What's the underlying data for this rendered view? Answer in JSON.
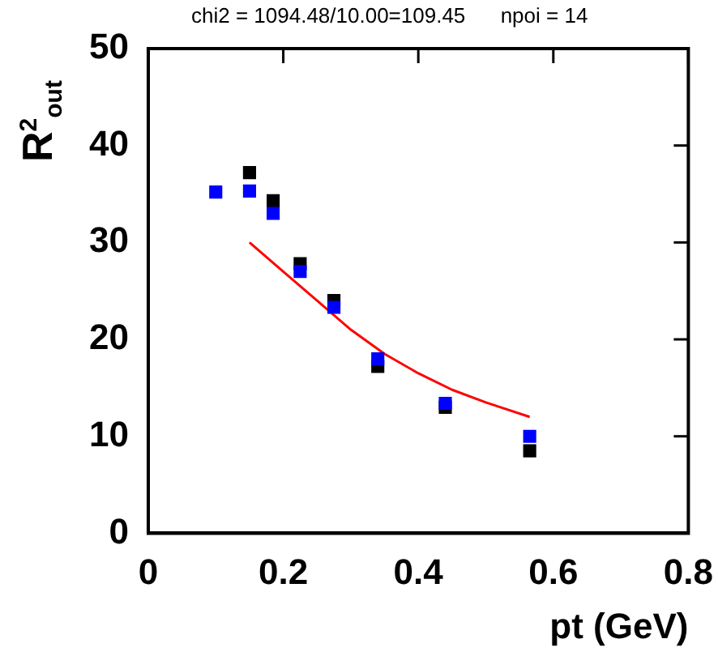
{
  "chart_data": {
    "type": "scatter",
    "ylabel": "R$^{2}$$_{out}$",
    "xlabel": "pt (GeV)",
    "annotations": [
      "chi2 = 1094.48/10.00=109.45",
      "npoi = 14"
    ],
    "xlim": [
      0,
      0.8
    ],
    "xticks": [
      0,
      0.2,
      0.4,
      0.6,
      0.8
    ],
    "ylim": [
      0,
      50
    ],
    "yticks": [
      0,
      10,
      20,
      30,
      40,
      50
    ],
    "grid": false,
    "legend": false,
    "marker": "square",
    "series": [
      {
        "color": "#0000ff",
        "x": [
          0.1,
          0.15,
          0.185,
          0.225,
          0.275,
          0.34,
          0.44,
          0.565
        ],
        "values": [
          35.2,
          35.3,
          33.0,
          27.0,
          23.3,
          18.0,
          13.4,
          10.0
        ]
      },
      {
        "color": "#000000",
        "x": [
          0.15,
          0.185,
          0.225,
          0.275,
          0.34,
          0.44,
          0.565
        ],
        "values": [
          37.2,
          34.3,
          27.8,
          24.0,
          17.2,
          13.0,
          8.5
        ]
      },
      {
        "type": "line",
        "marker": "none",
        "color": "#ff0000",
        "x": [
          0.15,
          0.2,
          0.25,
          0.3,
          0.35,
          0.4,
          0.45,
          0.5,
          0.565
        ],
        "values": [
          30,
          27,
          24,
          21,
          18.5,
          16.5,
          14.8,
          13.5,
          12
        ]
      }
    ]
  }
}
